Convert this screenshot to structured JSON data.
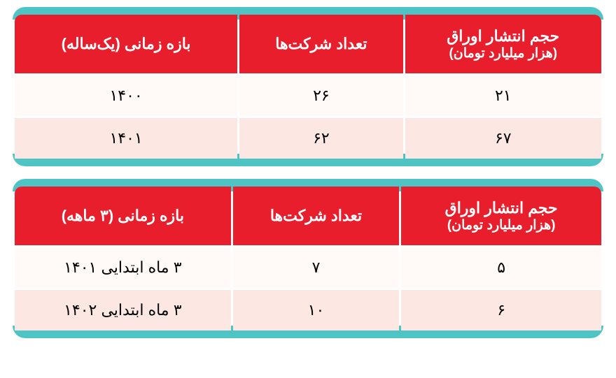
{
  "tables": [
    {
      "columns": [
        {
          "line1": "حجم انتشار اوراق",
          "line2": "(هزار میلیارد تومان)"
        },
        {
          "line1": "تعداد شرکت‌ها",
          "line2": ""
        },
        {
          "line1": "بازه زمانی (یک‌ساله)",
          "line2": ""
        }
      ],
      "rows": [
        {
          "cells": [
            "۲۱",
            "۲۶",
            "۱۴۰۰"
          ],
          "style": "light"
        },
        {
          "cells": [
            "۶۷",
            "۶۲",
            "۱۴۰۱"
          ],
          "style": "pink"
        }
      ]
    },
    {
      "columns": [
        {
          "line1": "حجم انتشار اوراق",
          "line2": "(هزار میلیارد تومان)"
        },
        {
          "line1": "تعداد شرکت‌ها",
          "line2": ""
        },
        {
          "line1": "بازه زمانی (۳ ماهه)",
          "line2": ""
        }
      ],
      "rows": [
        {
          "cells": [
            "۵",
            "۷",
            "۳ ماه ابتدایی ۱۴۰۱"
          ],
          "style": "light"
        },
        {
          "cells": [
            "۶",
            "۱۰",
            "۳ ماه ابتدایی ۱۴۰۲"
          ],
          "style": "pink"
        }
      ]
    }
  ],
  "style": {
    "header_bg": "#e91e2c",
    "header_fg": "#ffffff",
    "teal_band": "#4fc4c4",
    "row_light_bg": "#fffaf8",
    "row_pink_bg": "#fde7e3",
    "cell_fg": "#000000",
    "header_fontsize": 22,
    "cell_fontsize": 22,
    "border_radius": 10
  }
}
